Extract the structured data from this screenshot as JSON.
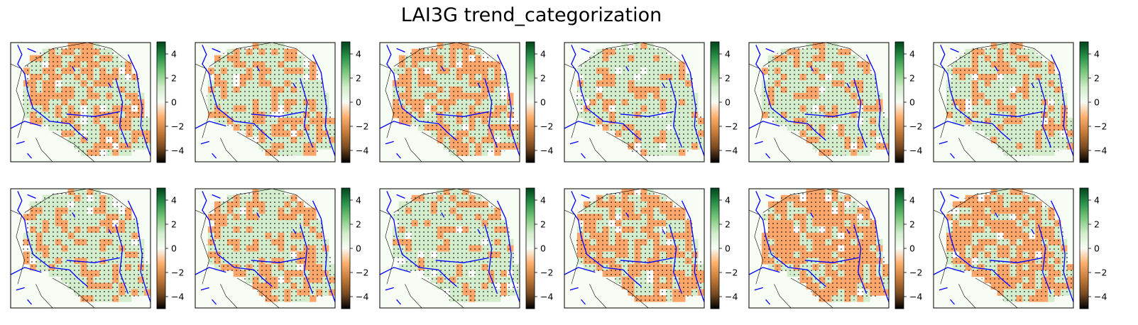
{
  "title": "LAI3G trend_categorization",
  "colorbar": {
    "ticks": [
      4,
      2,
      0,
      -2,
      -4
    ],
    "tick_labels": [
      "4",
      "2",
      "0",
      "−2",
      "−4"
    ],
    "range": [
      -5,
      5
    ],
    "stops": [
      "#00441b",
      "#2a924a",
      "#7bc87c",
      "#d1edcb",
      "#f7fcf5",
      "#fdae6b",
      "#c57b3a",
      "#7a4b22",
      "#000000"
    ]
  },
  "colors": {
    "positive": "#d4edcd",
    "negative": "#fca66c",
    "background": "#f7fcf5",
    "coastline": "#0000ff",
    "border": "#000000",
    "stipple": "#000000"
  },
  "panels": [
    {
      "seed": 11,
      "neg": 0.48
    },
    {
      "seed": 23,
      "neg": 0.33
    },
    {
      "seed": 37,
      "neg": 0.52
    },
    {
      "seed": 41,
      "neg": 0.22
    },
    {
      "seed": 53,
      "neg": 0.24
    },
    {
      "seed": 67,
      "neg": 0.28
    },
    {
      "seed": 71,
      "neg": 0.3
    },
    {
      "seed": 83,
      "neg": 0.42
    },
    {
      "seed": 97,
      "neg": 0.18
    },
    {
      "seed": 101,
      "neg": 0.55
    },
    {
      "seed": 113,
      "neg": 0.7
    },
    {
      "seed": 127,
      "neg": 0.62
    }
  ]
}
